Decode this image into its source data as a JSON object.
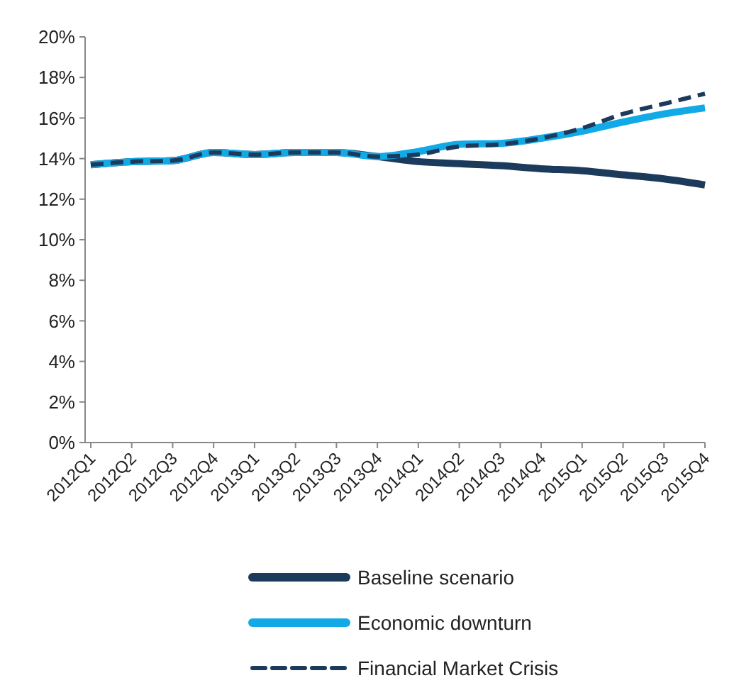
{
  "chart_data": {
    "type": "line",
    "categories": [
      "2012Q1",
      "2012Q2",
      "2012Q3",
      "2012Q4",
      "2013Q1",
      "2013Q2",
      "2013Q3",
      "2013Q4",
      "2014Q1",
      "2014Q2",
      "2014Q3",
      "2014Q4",
      "2015Q1",
      "2015Q2",
      "2015Q3",
      "2015Q4"
    ],
    "series": [
      {
        "name": "Baseline scenario",
        "color": "#1b3a5c",
        "line_style": "solid",
        "values": [
          13.7,
          13.85,
          13.9,
          14.3,
          14.2,
          14.3,
          14.3,
          14.1,
          13.85,
          13.75,
          13.65,
          13.5,
          13.4,
          13.2,
          13.0,
          12.7
        ]
      },
      {
        "name": "Economic downturn",
        "color": "#12aae6",
        "line_style": "solid",
        "values": [
          13.7,
          13.85,
          13.9,
          14.3,
          14.2,
          14.3,
          14.3,
          14.1,
          14.35,
          14.7,
          14.75,
          15.0,
          15.35,
          15.8,
          16.2,
          16.5
        ]
      },
      {
        "name": "Financial Market Crisis",
        "color": "#1b3a5c",
        "line_style": "dashed",
        "values": [
          13.7,
          13.85,
          13.9,
          14.3,
          14.2,
          14.3,
          14.3,
          14.1,
          14.2,
          14.6,
          14.7,
          15.0,
          15.5,
          16.2,
          16.7,
          17.2
        ]
      }
    ],
    "ylim": [
      0,
      20
    ],
    "yticks": [
      {
        "value": 0,
        "label": "0%"
      },
      {
        "value": 2,
        "label": "2%"
      },
      {
        "value": 4,
        "label": "4%"
      },
      {
        "value": 6,
        "label": "6%"
      },
      {
        "value": 8,
        "label": "8%"
      },
      {
        "value": 10,
        "label": "10%"
      },
      {
        "value": 12,
        "label": "12%"
      },
      {
        "value": 14,
        "label": "14%"
      },
      {
        "value": 16,
        "label": "16%"
      },
      {
        "value": 18,
        "label": "18%"
      },
      {
        "value": 20,
        "label": "20%"
      }
    ],
    "grid": false,
    "legend": "bottom"
  }
}
